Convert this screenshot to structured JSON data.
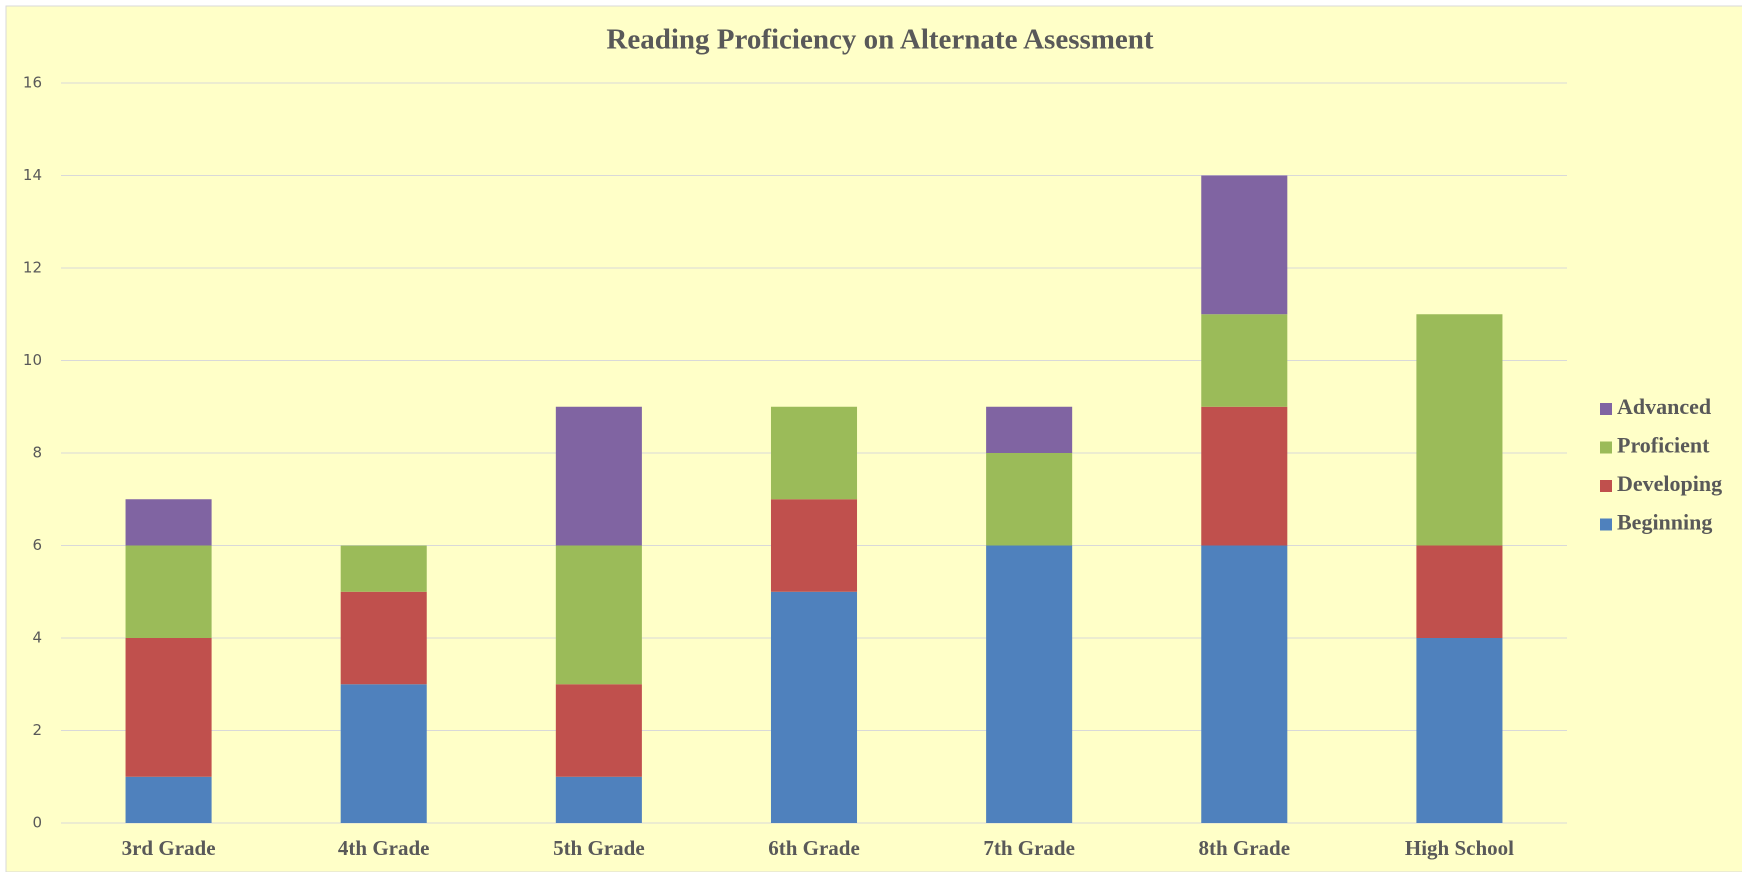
{
  "chart_data": {
    "type": "stacked_bar",
    "title": "Reading Proficiency on Alternate Asessment",
    "categories": [
      "3rd Grade",
      "4th Grade",
      "5th Grade",
      "6th Grade",
      "7th Grade",
      "8th Grade",
      "High School"
    ],
    "series": [
      {
        "name": "Beginning",
        "color": "#4f81bd",
        "values": [
          1,
          3,
          1,
          5,
          6,
          6,
          4
        ]
      },
      {
        "name": "Developing",
        "color": "#c0504d",
        "values": [
          3,
          2,
          2,
          2,
          0,
          3,
          2
        ]
      },
      {
        "name": "Proficient",
        "color": "#9bbb59",
        "values": [
          2,
          1,
          3,
          2,
          2,
          2,
          5
        ]
      },
      {
        "name": "Advanced",
        "color": "#8064a2",
        "values": [
          1,
          0,
          3,
          0,
          1,
          3,
          0
        ]
      }
    ],
    "ylim": [
      0,
      16
    ],
    "yticks": [
      0,
      2,
      4,
      6,
      8,
      10,
      12,
      14,
      16
    ],
    "grid": true,
    "legend": "right"
  }
}
